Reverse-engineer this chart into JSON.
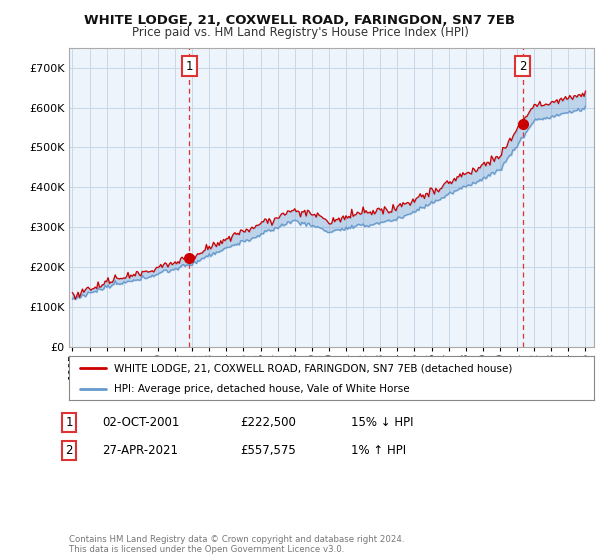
{
  "title": "WHITE LODGE, 21, COXWELL ROAD, FARINGDON, SN7 7EB",
  "subtitle": "Price paid vs. HM Land Registry's House Price Index (HPI)",
  "legend_line1": "WHITE LODGE, 21, COXWELL ROAD, FARINGDON, SN7 7EB (detached house)",
  "legend_line2": "HPI: Average price, detached house, Vale of White Horse",
  "annotation1_label": "1",
  "annotation1_date": "02-OCT-2001",
  "annotation1_price": "£222,500",
  "annotation1_hpi": "15% ↓ HPI",
  "annotation2_label": "2",
  "annotation2_date": "27-APR-2021",
  "annotation2_price": "£557,575",
  "annotation2_hpi": "1% ↑ HPI",
  "footer": "Contains HM Land Registry data © Crown copyright and database right 2024.\nThis data is licensed under the Open Government Licence v3.0.",
  "sale1_year": 2001.83,
  "sale1_price": 222500,
  "sale2_year": 2021.33,
  "sale2_price": 557575,
  "red_color": "#cc0000",
  "blue_color": "#6699cc",
  "fill_color": "#ddeeff",
  "vline_color": "#dd3333",
  "background_color": "#ffffff",
  "plot_bg_color": "#eef4fb",
  "grid_color": "#c8d8e8",
  "ylim": [
    0,
    750000
  ],
  "xlim_start": 1995,
  "xlim_end": 2025.5
}
